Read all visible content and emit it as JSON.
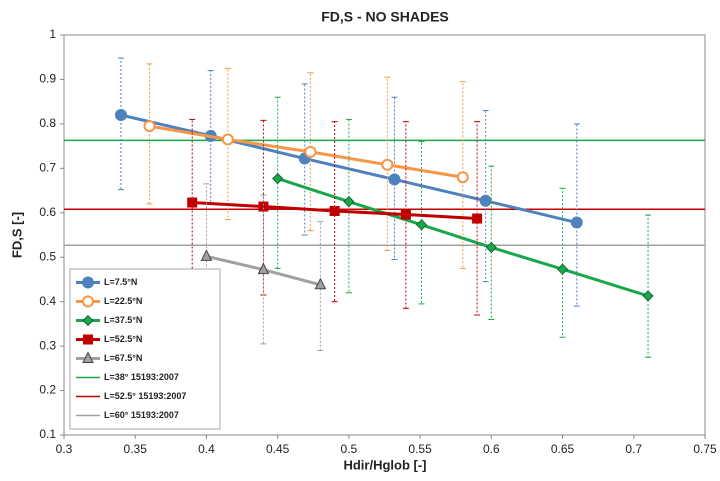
{
  "chart_data": {
    "type": "scatter",
    "title": "FD,S - NO SHADES",
    "xlabel": "Hdir/Hglob [-]",
    "ylabel": "FD,S [-]",
    "xlim": [
      0.3,
      0.75
    ],
    "ylim": [
      0.1,
      1
    ],
    "xticks": [
      0.3,
      0.35,
      0.4,
      0.45,
      0.5,
      0.55,
      0.6,
      0.65,
      0.7,
      0.75
    ],
    "yticks": [
      0.1,
      0.2,
      0.3,
      0.4,
      0.5,
      0.6,
      0.7,
      0.8,
      0.9,
      1
    ],
    "legend": "lower left",
    "series": [
      {
        "name": "L=7.5°N",
        "color": "#4f81bd",
        "marker": "circle",
        "x": [
          0.34,
          0.403,
          0.469,
          0.532,
          0.596,
          0.66
        ],
        "values": [
          0.82,
          0.773,
          0.722,
          0.675,
          0.627,
          0.578
        ],
        "upper": [
          0.948,
          0.92,
          0.89,
          0.86,
          0.83,
          0.8
        ],
        "lower": [
          0.652,
          0.62,
          0.55,
          0.495,
          0.445,
          0.39
        ]
      },
      {
        "name": "L=22.5°N",
        "color": "#f79646",
        "marker": "hollow-circle",
        "x": [
          0.36,
          0.415,
          0.473,
          0.527,
          0.58
        ],
        "values": [
          0.795,
          0.765,
          0.737,
          0.708,
          0.68
        ],
        "upper": [
          0.935,
          0.925,
          0.915,
          0.905,
          0.895
        ],
        "lower": [
          0.62,
          0.585,
          0.56,
          0.515,
          0.475
        ]
      },
      {
        "name": "L=37.5°N",
        "color": "#1aa64a",
        "marker": "diamond",
        "x": [
          0.45,
          0.5,
          0.551,
          0.6,
          0.65,
          0.71
        ],
        "values": [
          0.677,
          0.625,
          0.573,
          0.522,
          0.473,
          0.413
        ],
        "upper": [
          0.86,
          0.81,
          0.76,
          0.705,
          0.655,
          0.595
        ],
        "lower": [
          0.475,
          0.42,
          0.395,
          0.36,
          0.32,
          0.275
        ]
      },
      {
        "name": "L=52.5°N",
        "color": "#c00000",
        "marker": "square",
        "x": [
          0.39,
          0.44,
          0.49,
          0.54,
          0.59
        ],
        "values": [
          0.623,
          0.614,
          0.604,
          0.596,
          0.587
        ],
        "upper": [
          0.81,
          0.808,
          0.805,
          0.805,
          0.805
        ],
        "lower": [
          0.43,
          0.415,
          0.4,
          0.385,
          0.37
        ]
      },
      {
        "name": "L=67.5°N",
        "color": "#a0a0a0",
        "marker": "triangle",
        "x": [
          0.4,
          0.44,
          0.48
        ],
        "values": [
          0.502,
          0.472,
          0.438
        ],
        "upper": [
          0.665,
          0.64,
          0.58
        ],
        "lower": [
          0.325,
          0.305,
          0.29
        ]
      }
    ],
    "hlines": [
      {
        "name": "L=38° 15193:2007",
        "color": "#1aa64a",
        "value": 0.763
      },
      {
        "name": "L=52.5° 15193:2007",
        "color": "#c00000",
        "value": 0.608
      },
      {
        "name": "L=60° 15193:2007",
        "color": "#a0a0a0",
        "value": 0.527
      }
    ]
  }
}
